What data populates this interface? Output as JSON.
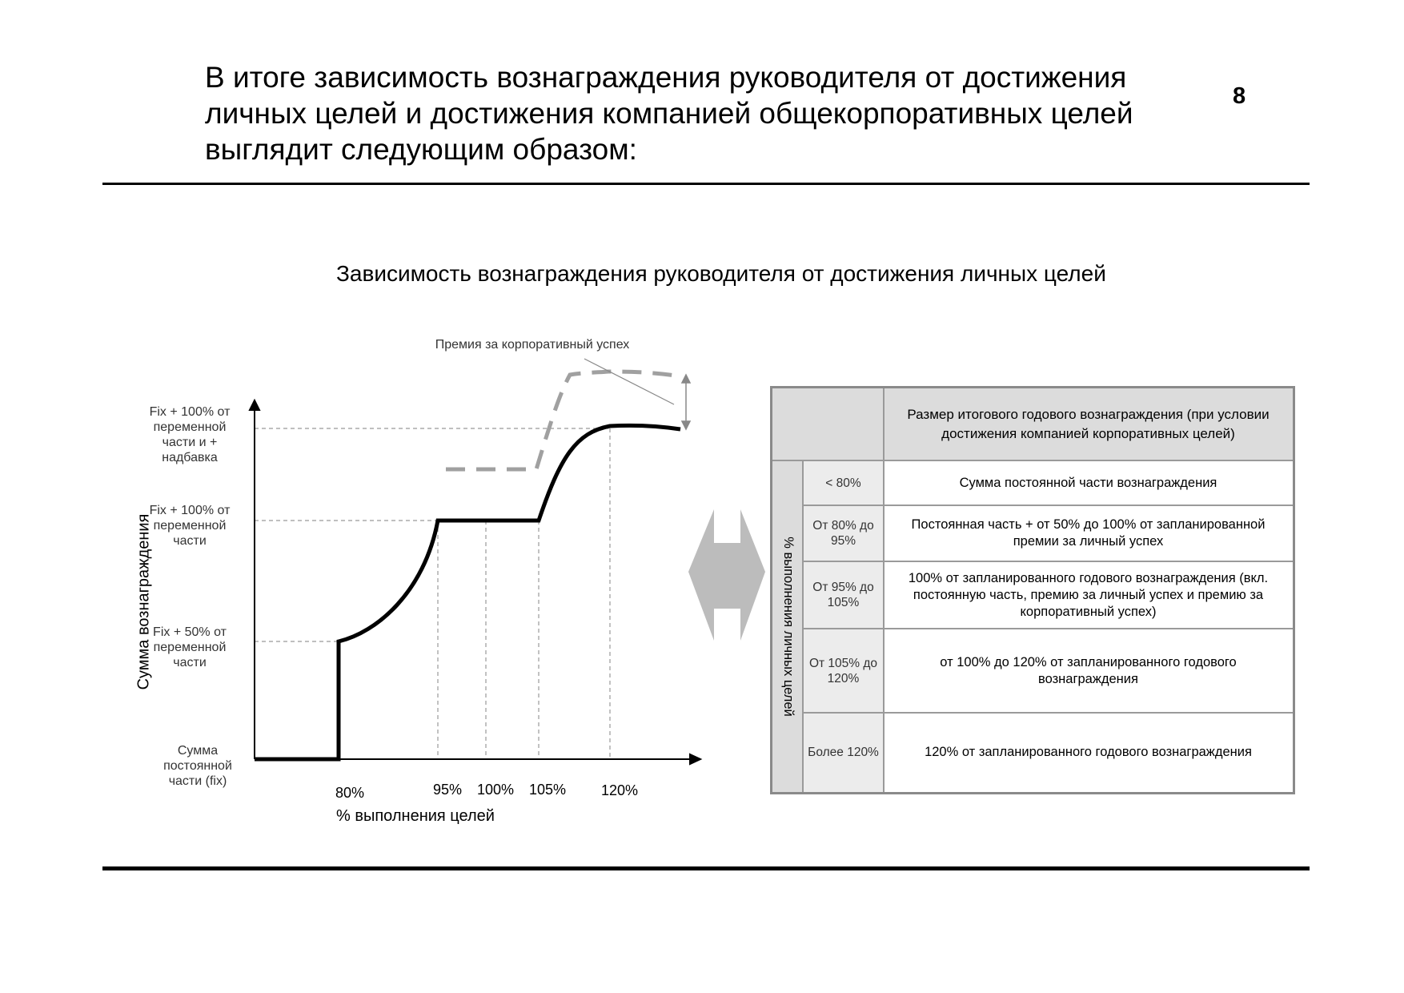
{
  "header": {
    "title": "В итоге зависимость вознаграждения руководителя от достижения личных целей и достижения компанией общекорпоративных целей выглядит следующим образом:",
    "page_number": "8"
  },
  "chart_title": "Зависимость вознаграждения руководителя от достижения личных целей",
  "chart_data": {
    "type": "line",
    "title": "",
    "xlabel": "% выполнения целей",
    "ylabel": "Сумма вознаграждения",
    "x_ticks": [
      "80%",
      "95%",
      "100%",
      "105%",
      "120%"
    ],
    "y_ticks": [
      "Сумма постоянной части (fix)",
      "Fix + 50% от переменной части",
      "Fix + 100% от переменной части",
      "Fix + 100% от переменной части и + надбавка"
    ],
    "annotation": "Премия за корпоративный успех",
    "series": [
      {
        "style": "solid",
        "x": [
          "0%",
          "80%",
          "80%",
          "95%",
          "100%",
          "105%",
          "120%",
          "Более 120%"
        ],
        "y": [
          "Сумма постоянной части (fix)",
          "Сумма постоянной части (fix)",
          "Fix + 50% от переменной части",
          "Fix + 100% от переменной части",
          "Fix + 100% от переменной части",
          "Fix + 100% от переменной части",
          "Fix + 100% от переменной части и + надбавка",
          "Fix + 100% от переменной части и + надбавка"
        ]
      },
      {
        "style": "dashed"
      }
    ]
  },
  "table": {
    "header": "Размер итогового годового вознаграждения (при условии достижения компанией корпоративных целей)",
    "side_label": "% выполнения личных целей",
    "rows": [
      {
        "range": "< 80%",
        "desc": "Сумма постоянной части вознаграждения"
      },
      {
        "range": "От 80% до 95%",
        "desc": "Постоянная часть + от 50% до 100% от запланированной премии за личный успех"
      },
      {
        "range": "От 95% до 105%",
        "desc": "100% от запланированного годового вознаграждения (вкл. постоянную часть, премию за личный успех и премию за корпоративный успех)"
      },
      {
        "range": "От 105% до 120%",
        "desc": "от 100% до 120% от запланированного годового вознаграждения"
      },
      {
        "range": "Более 120%",
        "desc": "120% от запланированного годового вознаграждения"
      }
    ]
  },
  "arrow_icon": "double-arrow-icon"
}
